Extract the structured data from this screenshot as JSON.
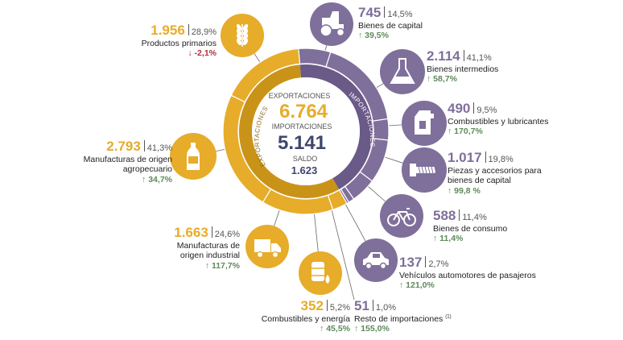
{
  "colors": {
    "export": "#e6ac2a",
    "import": "#7f6f9b",
    "up": "#5d8a5a",
    "down": "#b2303e",
    "total_import": "#3e466f"
  },
  "center": {
    "exports_label": "EXPORTACIONES",
    "exports_value": "6.764",
    "imports_label": "IMPORTACIONES",
    "imports_value": "5.141",
    "balance_label": "SALDO",
    "balance_value": "1.623"
  },
  "ring_labels": {
    "export": "EXPORTACIONES",
    "import": "IMPORTACIONES"
  },
  "chart_data": {
    "type": "pie",
    "series": [
      {
        "name": "EXPORTACIONES",
        "values": [
          1956,
          2793,
          1663,
          352
        ],
        "total": 6764
      },
      {
        "name": "IMPORTACIONES",
        "values": [
          745,
          2114,
          490,
          1017,
          588,
          137,
          51
        ],
        "total": 5141
      }
    ]
  },
  "exports": [
    {
      "value": "1.956",
      "share": "28,9%",
      "label": "Productos primarios",
      "change": "-2,1%",
      "dir": "down",
      "icon": "wheat-icon"
    },
    {
      "value": "2.793",
      "share": "41,3%",
      "label": "Manufacturas de origen agropecuario",
      "change": "34,7%",
      "dir": "up",
      "icon": "bottle-icon"
    },
    {
      "value": "1.663",
      "share": "24,6%",
      "label": "Manufacturas de origen industrial",
      "change": "117,7%",
      "dir": "up",
      "icon": "truck-icon"
    },
    {
      "value": "352",
      "share": "5,2%",
      "label": "Combustibles y energía",
      "change": "45,5%",
      "dir": "up",
      "icon": "barrel-icon"
    }
  ],
  "imports": [
    {
      "value": "745",
      "share": "14,5%",
      "label": "Bienes de capital",
      "change": "39,5%",
      "dir": "up",
      "icon": "tractor-icon"
    },
    {
      "value": "2.114",
      "share": "41,1%",
      "label": "Bienes intermedios",
      "change": "58,7%",
      "dir": "up",
      "icon": "flask-icon"
    },
    {
      "value": "490",
      "share": "9,5%",
      "label": "Combustibles y lubricantes",
      "change": "170,7%",
      "dir": "up",
      "icon": "jerrycan-icon"
    },
    {
      "value": "1.017",
      "share": "19,8%",
      "label": "Piezas y accesorios para bienes de capital",
      "change": "99,8 %",
      "dir": "up",
      "icon": "bolt-icon"
    },
    {
      "value": "588",
      "share": "11,4%",
      "label": "Bienes de consumo",
      "change": "11,4%",
      "dir": "up",
      "icon": "bicycle-icon"
    },
    {
      "value": "137",
      "share": "2,7%",
      "label": "Vehículos automotores de pasajeros",
      "change": "121,0%",
      "dir": "up",
      "icon": "car-icon"
    },
    {
      "value": "51",
      "share": "1,0%",
      "label": "Resto de importaciones",
      "note": "(1)",
      "change": "155,0%",
      "dir": "up",
      "icon": ""
    }
  ]
}
